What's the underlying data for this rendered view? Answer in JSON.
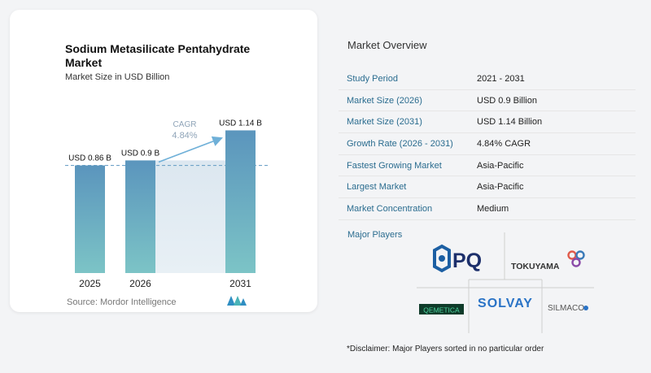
{
  "left_panel": {
    "title": "Sodium Metasilicate Pentahydrate Market",
    "subtitle": "Market Size in USD Billion",
    "source": "Source: Mordor Intelligence"
  },
  "chart_data": {
    "type": "bar",
    "title": "Sodium Metasilicate Pentahydrate Market",
    "subtitle": "Market Size in USD Billion",
    "categories": [
      "2025",
      "2026",
      "2031"
    ],
    "values": [
      0.86,
      0.9,
      1.14
    ],
    "data_labels": [
      "USD 0.86 B",
      "USD 0.9 B",
      "USD 1.14 B"
    ],
    "cagr_label": "CAGR",
    "cagr_value": "4.84%",
    "ylim": [
      0,
      1.2
    ],
    "grid": false,
    "colors": {
      "bar_top": "#5b95bd",
      "bar_bottom": "#7cc4c6",
      "band": "#dfe8f0",
      "arrow": "#6fb0d8",
      "dashed": "#6fa3c8"
    }
  },
  "overview": {
    "title": "Market Overview",
    "rows": [
      {
        "label": "Study Period",
        "value": "2021 - 2031"
      },
      {
        "label": "Market Size (2026)",
        "value": "USD 0.9 Billion"
      },
      {
        "label": "Market Size (2031)",
        "value": "USD 1.14 Billion"
      },
      {
        "label": "Growth Rate (2026 - 2031)",
        "value": "4.84% CAGR"
      },
      {
        "label": "Fastest Growing Market",
        "value": "Asia-Pacific"
      },
      {
        "label": "Largest Market",
        "value": "Asia-Pacific"
      },
      {
        "label": "Market Concentration",
        "value": "Medium"
      }
    ],
    "players_label": "Major Players",
    "players": [
      "PQ",
      "TOKUYAMA",
      "QEMETICA",
      "SOLVAY",
      "SILMACO"
    ],
    "disclaimer": "*Disclaimer: Major Players sorted in no particular order"
  }
}
